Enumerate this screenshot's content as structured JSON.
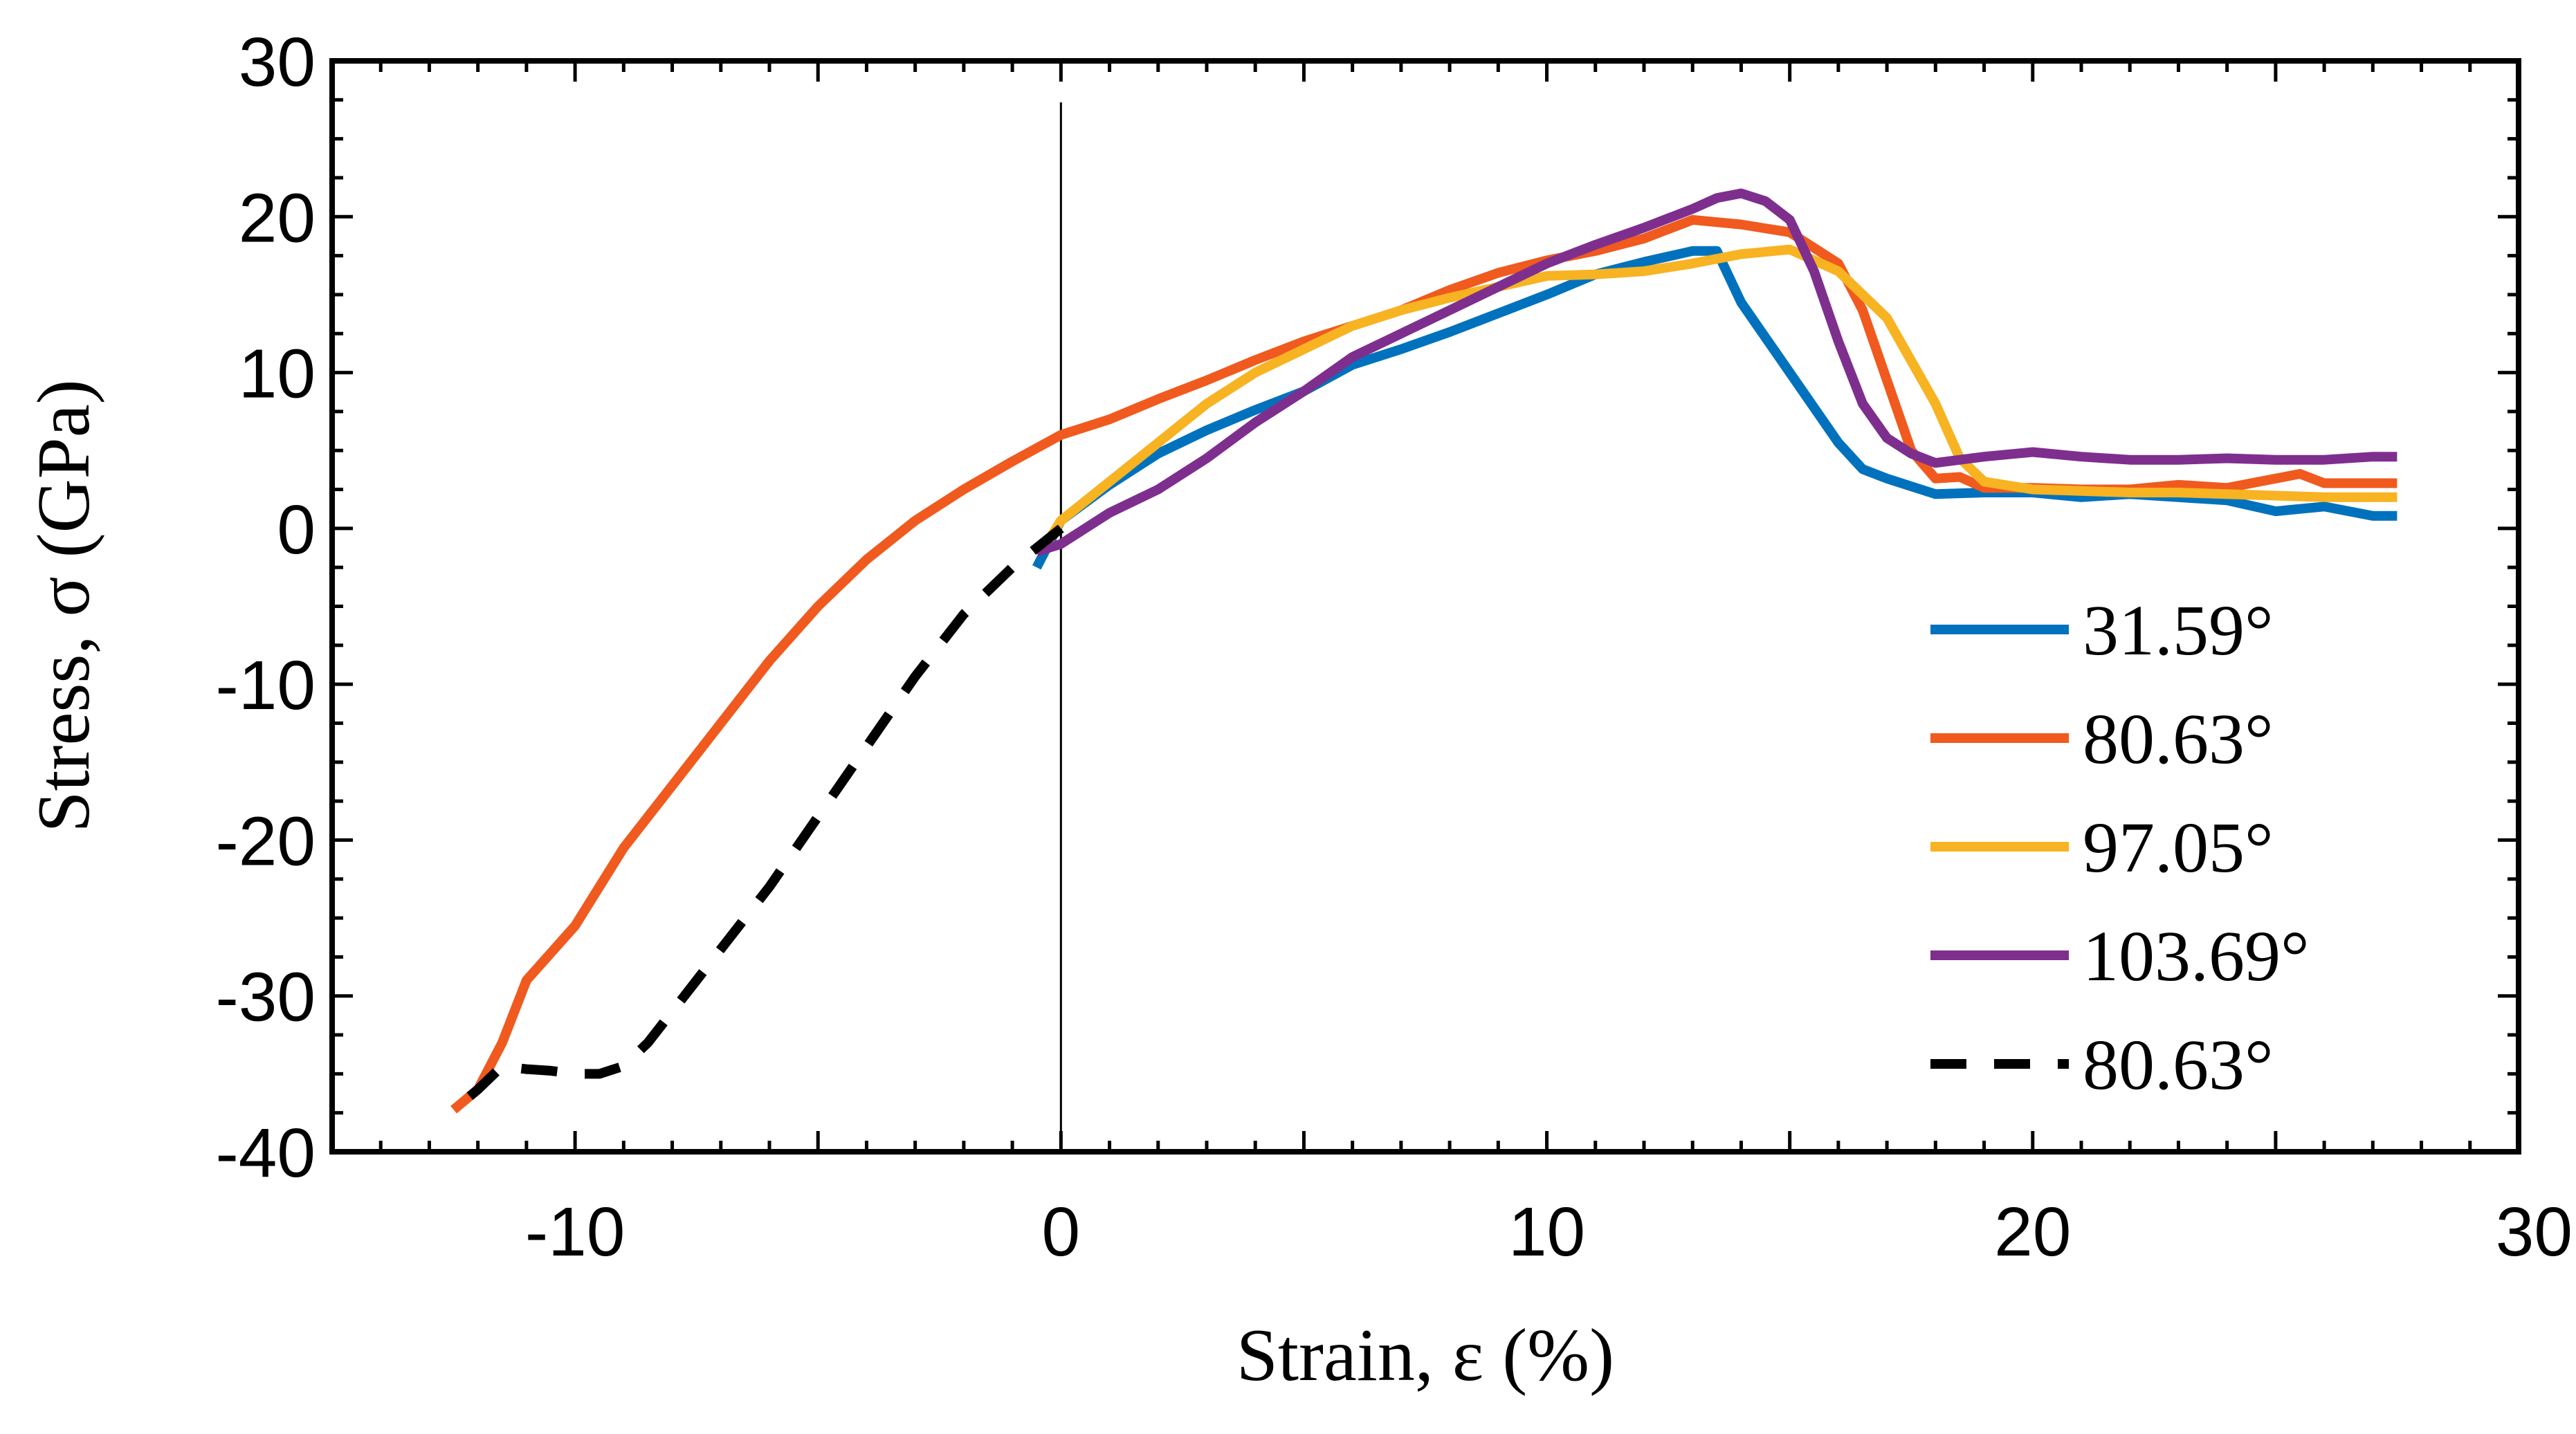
{
  "chart_data": {
    "type": "line",
    "xlabel": "Strain, ε (%)",
    "ylabel": "Stress, σ (GPa)",
    "xlim": [
      -15,
      30
    ],
    "ylim": [
      -40,
      30
    ],
    "x_ticks": [
      -10,
      0,
      10,
      20,
      30
    ],
    "y_ticks": [
      -40,
      -30,
      -20,
      -10,
      0,
      10,
      20,
      30
    ],
    "x_tick_labels": [
      "-10",
      "0",
      "10",
      "20",
      "30"
    ],
    "y_tick_labels": [
      "-40",
      "-30",
      "-20",
      "-10",
      "0",
      "10",
      "20",
      "30"
    ],
    "vertical_reference_line_x": 0,
    "grid": false,
    "legend_position": "bottom-right",
    "series": [
      {
        "name": "31.59°",
        "color": "#0072BD",
        "dash": "solid",
        "x": [
          -0.5,
          0,
          1,
          2,
          3,
          4,
          5,
          6,
          7,
          8,
          9,
          10,
          11,
          12,
          13,
          13.5,
          14,
          15,
          16,
          16.5,
          17,
          18,
          19,
          20,
          21,
          22,
          23,
          24,
          25,
          26,
          27,
          27.5
        ],
        "y": [
          -2.5,
          0.5,
          2.8,
          4.8,
          6.3,
          7.6,
          8.8,
          10.5,
          11.5,
          12.6,
          13.8,
          15.0,
          16.3,
          17.1,
          17.8,
          17.8,
          14.5,
          10,
          5.5,
          3.8,
          3.2,
          2.2,
          2.3,
          2.3,
          2.0,
          2.2,
          2.0,
          1.8,
          1.1,
          1.4,
          0.8,
          0.8
        ]
      },
      {
        "name": "80.63°",
        "color": "#F05A1E",
        "dash": "solid",
        "x": [
          -12.5,
          -12,
          -11.5,
          -11,
          -10,
          -9,
          -8,
          -7,
          -6,
          -5,
          -4,
          -3,
          -2,
          -1,
          0,
          1,
          2,
          3,
          4,
          5,
          6,
          7,
          8,
          9,
          10,
          11,
          12,
          13,
          14,
          15,
          16,
          16.5,
          17,
          17.5,
          18,
          18.5,
          19,
          20,
          21,
          22,
          23,
          24,
          25,
          25.5,
          26,
          27,
          27.5
        ],
        "y": [
          -37.3,
          -36,
          -33,
          -29,
          -25.5,
          -20.5,
          -16.5,
          -12.5,
          -8.5,
          -5,
          -2,
          0.5,
          2.5,
          4.3,
          6.0,
          7.0,
          8.3,
          9.5,
          10.8,
          12,
          13,
          14,
          15.3,
          16.4,
          17.2,
          17.8,
          18.6,
          19.8,
          19.5,
          19,
          17,
          14,
          9.5,
          5,
          3.2,
          3.3,
          2.6,
          2.6,
          2.5,
          2.5,
          2.8,
          2.6,
          3.2,
          3.5,
          2.9,
          2.9,
          2.9
        ]
      },
      {
        "name": "97.05°",
        "color": "#F7B321",
        "dash": "solid",
        "x": [
          -0.3,
          0,
          1,
          2,
          3,
          4,
          5,
          6,
          7,
          8,
          9,
          10,
          11,
          12,
          13,
          14,
          15,
          16,
          17,
          18,
          18.5,
          19,
          20,
          21,
          22,
          23,
          24,
          25,
          26,
          27,
          27.5
        ],
        "y": [
          -1.0,
          0.5,
          3.0,
          5.5,
          8.0,
          10.0,
          11.5,
          13.0,
          14.0,
          14.8,
          15.5,
          16.2,
          16.3,
          16.5,
          17.0,
          17.6,
          17.9,
          16.5,
          13.5,
          8,
          4.5,
          3.0,
          2.5,
          2.4,
          2.3,
          2.3,
          2.2,
          2.1,
          2.0,
          2.0,
          2.0
        ]
      },
      {
        "name": "103.69°",
        "color": "#7E2F8E",
        "dash": "solid",
        "x": [
          -0.5,
          0,
          1,
          2,
          3,
          4,
          5,
          6,
          7,
          8,
          9,
          10,
          11,
          12,
          13,
          13.5,
          14,
          14.5,
          15,
          15.5,
          16,
          16.5,
          17,
          17.5,
          18,
          19,
          20,
          21,
          22,
          23,
          24,
          25,
          26,
          27,
          27.5
        ],
        "y": [
          -1.5,
          -1.0,
          1.0,
          2.5,
          4.5,
          6.8,
          8.8,
          11.0,
          12.5,
          14.0,
          15.5,
          17.0,
          18.2,
          19.3,
          20.5,
          21.2,
          21.5,
          21.0,
          19.8,
          16.5,
          12,
          8,
          5.8,
          4.8,
          4.2,
          4.6,
          4.9,
          4.6,
          4.4,
          4.4,
          4.5,
          4.4,
          4.4,
          4.6,
          4.6
        ]
      },
      {
        "name": "80.63°",
        "color": "#000000",
        "dash": "dashed",
        "x": [
          0,
          -1,
          -2,
          -3,
          -4,
          -5,
          -6,
          -7,
          -8,
          -8.5,
          -9,
          -9.5,
          -10,
          -10.5,
          -11,
          -11.5,
          -12,
          -12.5
        ],
        "y": [
          0,
          -2.5,
          -5.5,
          -9.5,
          -14,
          -18.5,
          -23,
          -27,
          -31,
          -33,
          -34.5,
          -35,
          -35,
          -34.8,
          -34.7,
          -34.5,
          -36,
          -37.3
        ]
      }
    ]
  }
}
